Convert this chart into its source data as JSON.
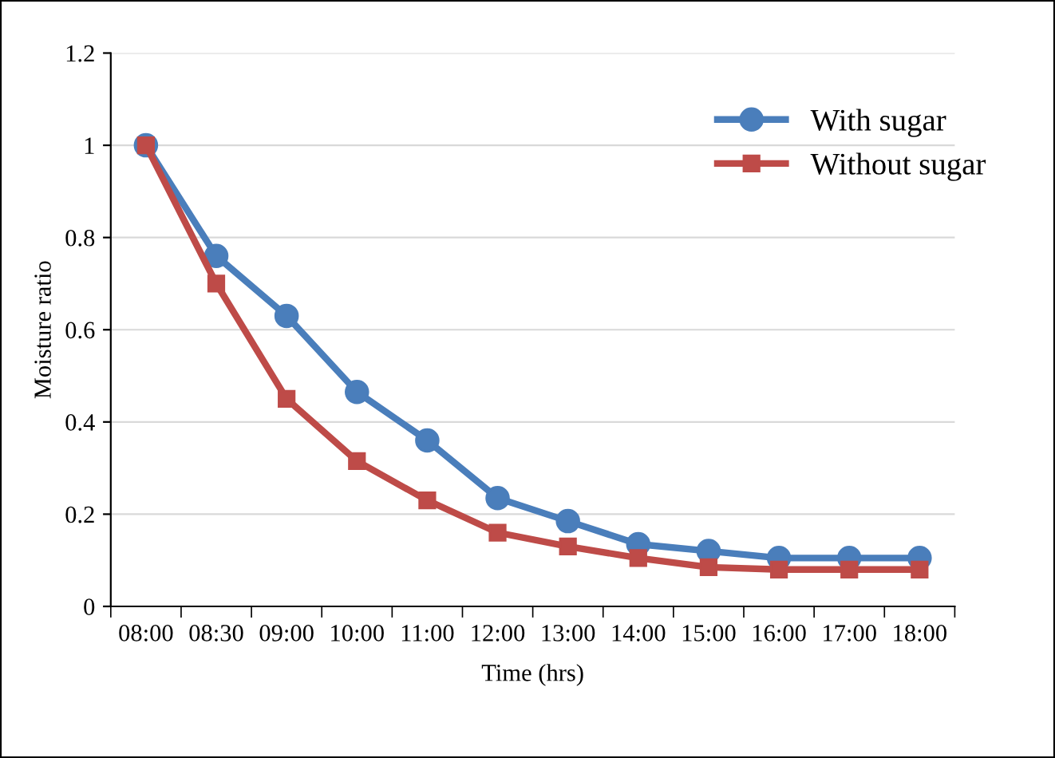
{
  "chart_data": {
    "type": "line",
    "xlabel": "Time (hrs)",
    "ylabel": "Moisture ratio",
    "categories": [
      "08:00",
      "08:30",
      "09:00",
      "10:00",
      "11:00",
      "12:00",
      "13:00",
      "14:00",
      "15:00",
      "16:00",
      "17:00",
      "18:00"
    ],
    "series": [
      {
        "name": "With sugar",
        "color": "#4a7ebb",
        "marker": "circle",
        "values": [
          1.0,
          0.76,
          0.63,
          0.465,
          0.36,
          0.235,
          0.185,
          0.135,
          0.12,
          0.105,
          0.105,
          0.105
        ]
      },
      {
        "name": "Without sugar",
        "color": "#be4b48",
        "marker": "square",
        "values": [
          1.0,
          0.7,
          0.45,
          0.315,
          0.23,
          0.16,
          0.13,
          0.105,
          0.085,
          0.08,
          0.08,
          0.08
        ]
      }
    ],
    "ylim": [
      0,
      1.2
    ],
    "yticks": [
      0,
      0.2,
      0.4,
      0.6,
      0.8,
      1,
      1.2
    ],
    "grid": "y",
    "legend": "top right",
    "line_style": "solid"
  }
}
